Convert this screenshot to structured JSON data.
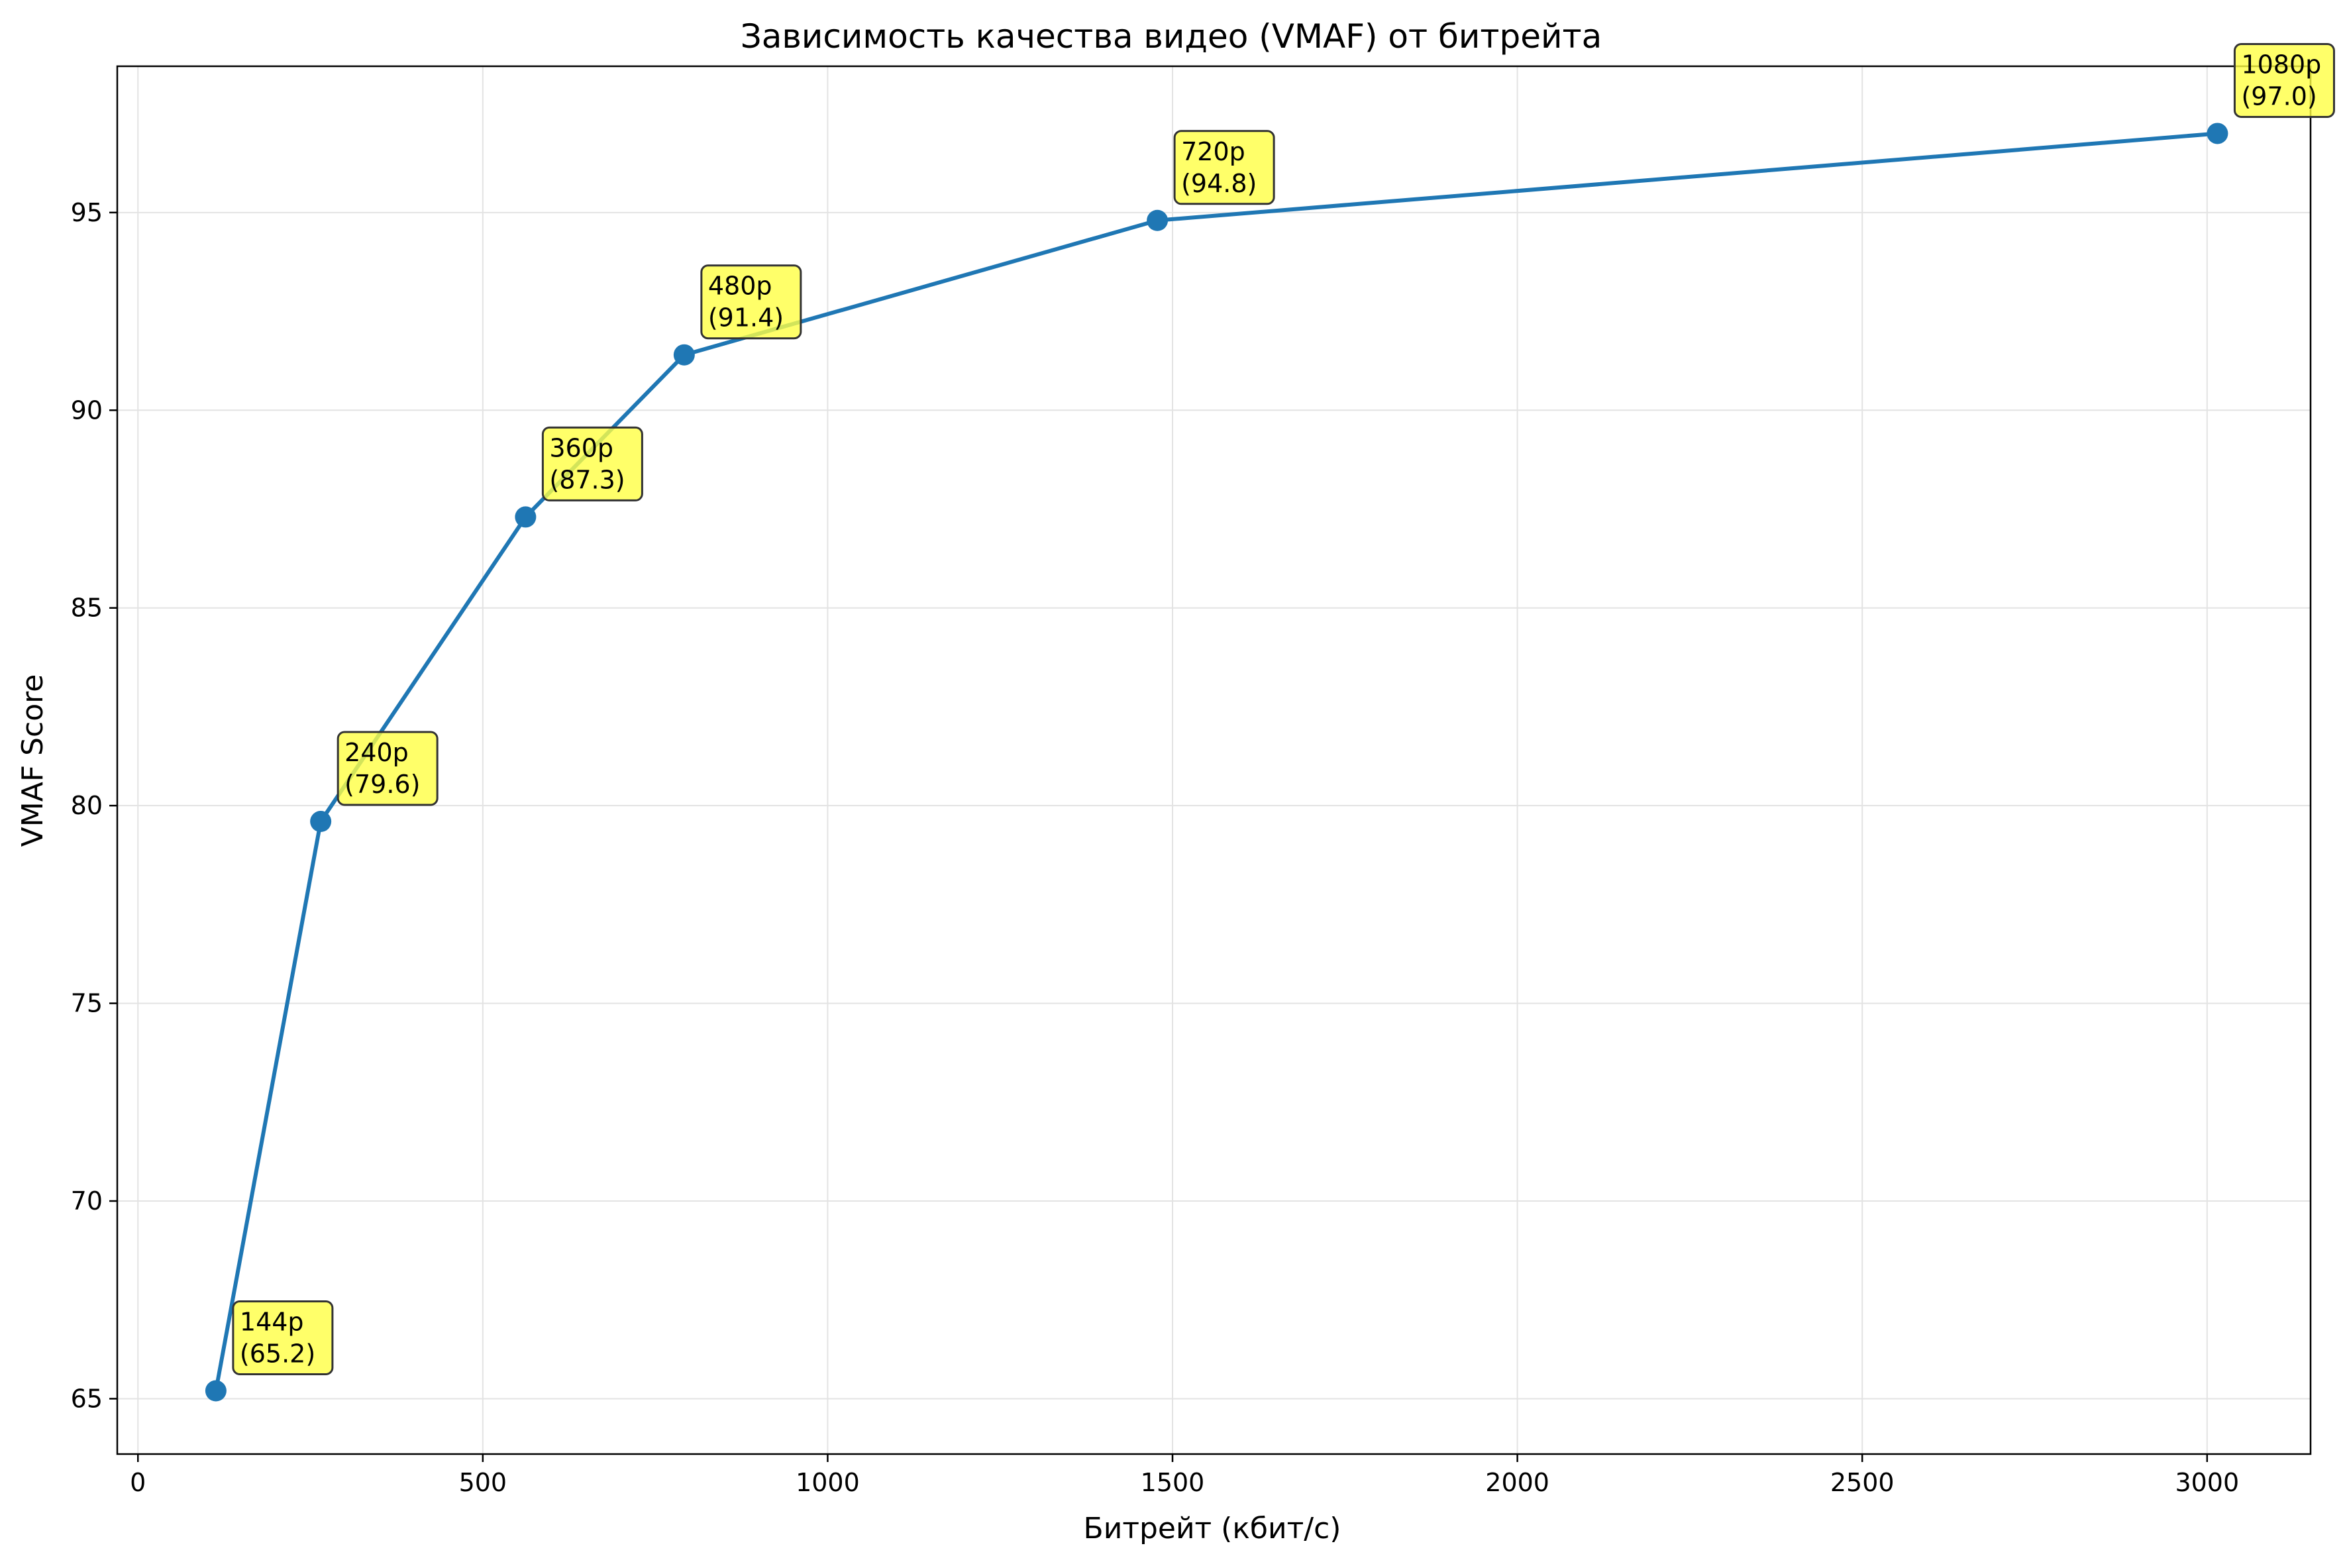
{
  "chart_data": {
    "type": "line",
    "title": "Зависимость качества видео (VMAF) от битрейта",
    "xlabel": "Битрейт (кбит/с)",
    "ylabel": "VMAF Score",
    "xlim": [
      -30,
      3150
    ],
    "ylim": [
      63.6,
      98.7
    ],
    "xticks": [
      0,
      500,
      1000,
      1500,
      2000,
      2500,
      3000
    ],
    "yticks": [
      65,
      70,
      75,
      80,
      85,
      90,
      95
    ],
    "grid": true,
    "series": [
      {
        "name": "VMAF",
        "color": "#1f77b4",
        "points": [
          {
            "x": 113,
            "y": 65.2,
            "label": "144p",
            "value_label": "(65.2)"
          },
          {
            "x": 265,
            "y": 79.6,
            "label": "240p",
            "value_label": "(79.6)"
          },
          {
            "x": 562,
            "y": 87.3,
            "label": "360p",
            "value_label": "(87.3)"
          },
          {
            "x": 792,
            "y": 91.4,
            "label": "480p",
            "value_label": "(91.4)"
          },
          {
            "x": 1478,
            "y": 94.8,
            "label": "720p",
            "value_label": "(94.8)"
          },
          {
            "x": 3015,
            "y": 97.0,
            "label": "1080p",
            "value_label": "(97.0)"
          }
        ]
      }
    ],
    "annotation_style": {
      "box_color": "#ffff44",
      "edge_color": "#333333"
    }
  }
}
